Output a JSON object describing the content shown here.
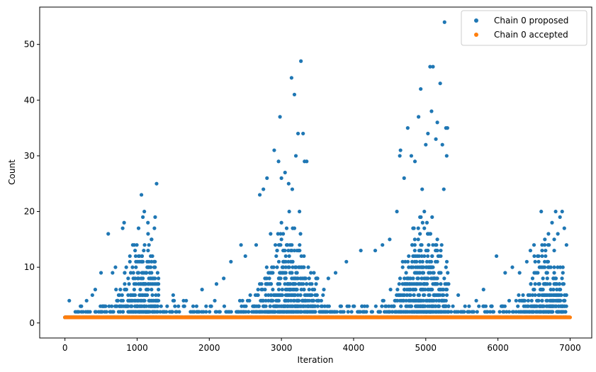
{
  "chart_data": {
    "type": "scatter",
    "title": "",
    "xlabel": "Iteration",
    "ylabel": "Count",
    "xlim": [
      -350,
      7300
    ],
    "ylim": [
      -2.7,
      56.7
    ],
    "xticks": [
      0,
      1000,
      2000,
      3000,
      4000,
      5000,
      6000,
      7000
    ],
    "yticks": [
      0,
      10,
      20,
      30,
      40,
      50
    ],
    "grid": false,
    "legend_position": "top-right",
    "series": [
      {
        "name": "Chain 0 proposed",
        "color": "#1f77b4",
        "points": [
          [
            600,
            16
          ],
          [
            800,
            17
          ],
          [
            820,
            18
          ],
          [
            1060,
            23
          ],
          [
            1100,
            20
          ],
          [
            1080,
            19
          ],
          [
            1150,
            18
          ],
          [
            1270,
            25
          ],
          [
            1250,
            19
          ],
          [
            1240,
            17
          ],
          [
            1200,
            15
          ],
          [
            980,
            12
          ],
          [
            940,
            14
          ],
          [
            900,
            12
          ],
          [
            850,
            10
          ],
          [
            700,
            10
          ],
          [
            660,
            9
          ],
          [
            500,
            9
          ],
          [
            420,
            6
          ],
          [
            380,
            5
          ],
          [
            300,
            4
          ],
          [
            2700,
            23
          ],
          [
            2750,
            24
          ],
          [
            2800,
            26
          ],
          [
            2850,
            16
          ],
          [
            2900,
            31
          ],
          [
            2960,
            29
          ],
          [
            2980,
            37
          ],
          [
            3000,
            26
          ],
          [
            3050,
            27
          ],
          [
            3100,
            25
          ],
          [
            3140,
            44
          ],
          [
            3180,
            41
          ],
          [
            3200,
            30
          ],
          [
            3230,
            34
          ],
          [
            3270,
            47
          ],
          [
            3300,
            34
          ],
          [
            3320,
            29
          ],
          [
            3250,
            20
          ],
          [
            3350,
            29
          ],
          [
            3150,
            24
          ],
          [
            2650,
            14
          ],
          [
            2500,
            12
          ],
          [
            2440,
            14
          ],
          [
            2300,
            11
          ],
          [
            2200,
            8
          ],
          [
            2100,
            7
          ],
          [
            1900,
            6
          ],
          [
            4650,
            31
          ],
          [
            4640,
            30
          ],
          [
            4700,
            26
          ],
          [
            4750,
            35
          ],
          [
            4800,
            30
          ],
          [
            4850,
            29
          ],
          [
            4900,
            37
          ],
          [
            4930,
            42
          ],
          [
            4950,
            24
          ],
          [
            5000,
            32
          ],
          [
            5030,
            34
          ],
          [
            5060,
            46
          ],
          [
            5100,
            46
          ],
          [
            5080,
            38
          ],
          [
            5140,
            33
          ],
          [
            5160,
            36
          ],
          [
            5200,
            43
          ],
          [
            5230,
            32
          ],
          [
            5260,
            54
          ],
          [
            5280,
            35
          ],
          [
            5300,
            35
          ],
          [
            5290,
            30
          ],
          [
            5250,
            24
          ],
          [
            4600,
            20
          ],
          [
            4500,
            15
          ],
          [
            4400,
            14
          ],
          [
            4300,
            13
          ],
          [
            4100,
            13
          ],
          [
            3900,
            11
          ],
          [
            3750,
            9
          ],
          [
            3650,
            8
          ],
          [
            3500,
            8
          ],
          [
            3450,
            9
          ],
          [
            5450,
            5
          ],
          [
            5980,
            12
          ],
          [
            6100,
            9
          ],
          [
            6200,
            10
          ],
          [
            6300,
            9
          ],
          [
            6400,
            11
          ],
          [
            6450,
            13
          ],
          [
            6500,
            14
          ],
          [
            6550,
            12
          ],
          [
            6600,
            20
          ],
          [
            6650,
            15
          ],
          [
            6700,
            16
          ],
          [
            6750,
            18
          ],
          [
            6800,
            20
          ],
          [
            6830,
            16
          ],
          [
            6860,
            19
          ],
          [
            6890,
            20
          ],
          [
            6920,
            17
          ],
          [
            6950,
            14
          ],
          [
            6900,
            10
          ],
          [
            5800,
            6
          ],
          [
            5700,
            4
          ],
          [
            5600,
            3
          ]
        ]
      },
      {
        "name": "Chain 0 accepted",
        "color": "#ff7f0e",
        "points": [
          [
            0,
            1
          ],
          [
            7000,
            1
          ]
        ]
      }
    ]
  }
}
